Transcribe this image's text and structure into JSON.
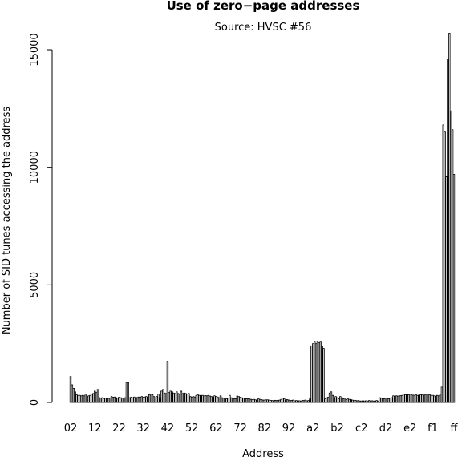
{
  "chart_data": {
    "type": "bar",
    "title": "Use of zero−page addresses",
    "subtitle": "Source: HVSC #56",
    "x_label": "Address",
    "y_label": "Number of SID tunes accessing the address",
    "color": "#ffffff",
    "edge_color": "#000000",
    "ylim": [
      0,
      15700
    ],
    "yticks": [
      0,
      5000,
      10000,
      15000
    ],
    "categories": [
      "02",
      null,
      null,
      null,
      null,
      null,
      null,
      null,
      null,
      null,
      null,
      null,
      null,
      null,
      null,
      null,
      "12",
      null,
      null,
      null,
      null,
      null,
      null,
      null,
      null,
      null,
      null,
      null,
      null,
      null,
      null,
      null,
      "22",
      null,
      null,
      null,
      null,
      null,
      null,
      null,
      null,
      null,
      null,
      null,
      null,
      null,
      null,
      null,
      "32",
      null,
      null,
      null,
      null,
      null,
      null,
      null,
      null,
      null,
      null,
      null,
      null,
      null,
      null,
      null,
      "42",
      null,
      null,
      null,
      null,
      null,
      null,
      null,
      null,
      null,
      null,
      null,
      null,
      null,
      null,
      null,
      "52",
      null,
      null,
      null,
      null,
      null,
      null,
      null,
      null,
      null,
      null,
      null,
      null,
      null,
      null,
      null,
      "62",
      null,
      null,
      null,
      null,
      null,
      null,
      null,
      null,
      null,
      null,
      null,
      null,
      null,
      null,
      null,
      "72",
      null,
      null,
      null,
      null,
      null,
      null,
      null,
      null,
      null,
      null,
      null,
      null,
      null,
      null,
      null,
      "82",
      null,
      null,
      null,
      null,
      null,
      null,
      null,
      null,
      null,
      null,
      null,
      null,
      null,
      null,
      null,
      "92",
      null,
      null,
      null,
      null,
      null,
      null,
      null,
      null,
      null,
      null,
      null,
      null,
      null,
      null,
      null,
      "a2",
      null,
      null,
      null,
      null,
      null,
      null,
      null,
      null,
      null,
      null,
      null,
      null,
      null,
      null,
      null,
      "b2",
      null,
      null,
      null,
      null,
      null,
      null,
      null,
      null,
      null,
      null,
      null,
      null,
      null,
      null,
      null,
      "c2",
      null,
      null,
      null,
      null,
      null,
      null,
      null,
      null,
      null,
      null,
      null,
      null,
      null,
      null,
      null,
      "d2",
      null,
      null,
      null,
      null,
      null,
      null,
      null,
      null,
      null,
      null,
      null,
      null,
      null,
      null,
      null,
      "e2",
      null,
      null,
      null,
      null,
      null,
      null,
      null,
      null,
      null,
      null,
      null,
      null,
      null,
      null,
      "f1",
      null,
      null,
      null,
      null,
      null,
      null,
      null,
      null,
      null,
      null,
      null,
      null,
      null,
      "ff"
    ],
    "values": [
      1100,
      750,
      600,
      450,
      320,
      300,
      300,
      280,
      300,
      280,
      350,
      250,
      280,
      300,
      350,
      380,
      480,
      420,
      550,
      200,
      180,
      200,
      170,
      180,
      180,
      170,
      190,
      250,
      220,
      230,
      200,
      180,
      220,
      200,
      180,
      190,
      200,
      850,
      850,
      200,
      220,
      200,
      230,
      200,
      210,
      230,
      220,
      250,
      220,
      230,
      250,
      220,
      330,
      350,
      330,
      250,
      200,
      250,
      350,
      200,
      480,
      550,
      400,
      380,
      1750,
      420,
      480,
      450,
      400,
      380,
      450,
      380,
      350,
      480,
      380,
      400,
      380,
      360,
      380,
      250,
      230,
      250,
      230,
      300,
      320,
      300,
      290,
      300,
      280,
      290,
      280,
      300,
      270,
      250,
      220,
      280,
      250,
      230,
      200,
      280,
      200,
      180,
      150,
      150,
      180,
      300,
      200,
      180,
      160,
      160,
      270,
      250,
      220,
      200,
      180,
      170,
      160,
      160,
      150,
      130,
      120,
      130,
      110,
      100,
      150,
      130,
      120,
      100,
      100,
      110,
      110,
      100,
      90,
      80,
      70,
      90,
      80,
      90,
      100,
      130,
      180,
      150,
      100,
      120,
      100,
      80,
      90,
      100,
      70,
      80,
      60,
      70,
      60,
      90,
      80,
      100,
      70,
      80,
      150,
      2400,
      2500,
      2600,
      2500,
      2600,
      2550,
      2600,
      2400,
      2300,
      150,
      200,
      220,
      400,
      450,
      300,
      200,
      250,
      200,
      150,
      250,
      200,
      150,
      180,
      120,
      150,
      130,
      120,
      100,
      80,
      90,
      70,
      80,
      60,
      60,
      70,
      60,
      70,
      60,
      80,
      60,
      70,
      60,
      60,
      80,
      60,
      200,
      180,
      150,
      160,
      180,
      170,
      160,
      190,
      200,
      280,
      260,
      280,
      270,
      280,
      290,
      300,
      350,
      320,
      340,
      330,
      350,
      320,
      310,
      300,
      320,
      300,
      310,
      320,
      330,
      300,
      320,
      350,
      340,
      320,
      300,
      300,
      280,
      260,
      300,
      280,
      350,
      650,
      11800,
      11500,
      9600,
      14600,
      15700,
      12400,
      11600,
      9700
    ]
  }
}
